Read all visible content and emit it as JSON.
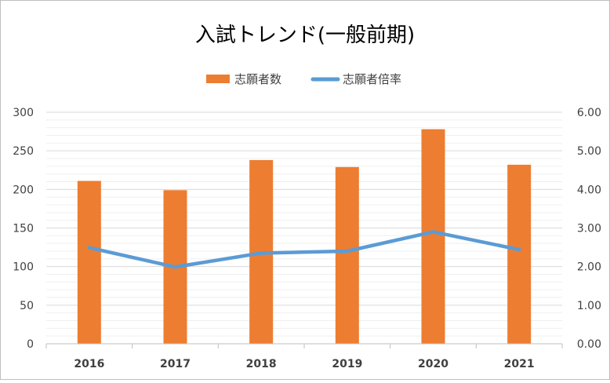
{
  "chart_data": {
    "type": "bar",
    "title": "入試トレンド(一般前期)",
    "categories": [
      "2016",
      "2017",
      "2018",
      "2019",
      "2020",
      "2021"
    ],
    "series": [
      {
        "name": "志願者数",
        "type": "bar",
        "axis": "left",
        "color": "#ED7D31",
        "values": [
          211,
          199,
          238,
          229,
          278,
          232
        ]
      },
      {
        "name": "志願者倍率",
        "type": "line",
        "axis": "right",
        "color": "#5B9BD5",
        "values": [
          2.49,
          1.99,
          2.35,
          2.4,
          2.9,
          2.44
        ]
      }
    ],
    "ylim": [
      0,
      300
    ],
    "yticks": [
      "0",
      "50",
      "100",
      "150",
      "200",
      "250",
      "300"
    ],
    "y2lim": [
      0,
      6
    ],
    "y2ticks": [
      "0.00",
      "1.00",
      "2.00",
      "3.00",
      "4.00",
      "5.00",
      "6.00"
    ],
    "grid": true,
    "legend_position": "top"
  }
}
